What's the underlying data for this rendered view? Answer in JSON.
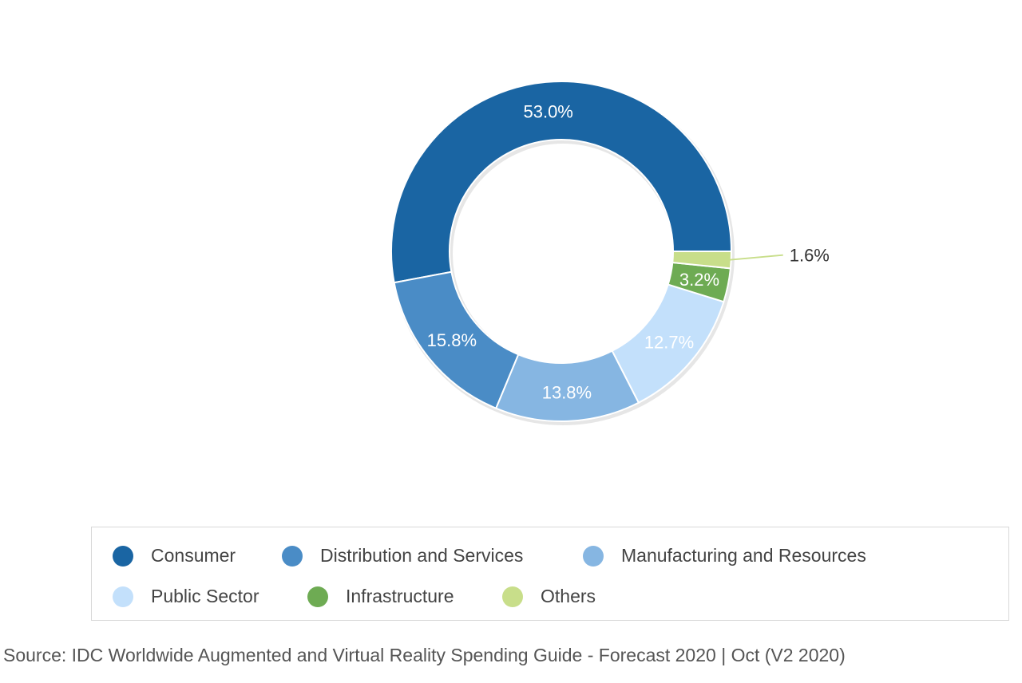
{
  "chart_data": {
    "type": "pie",
    "style": "donut",
    "categories": [
      "Consumer",
      "Distribution and Services",
      "Manufacturing and Resources",
      "Public Sector",
      "Infrastructure",
      "Others"
    ],
    "values": [
      53.0,
      15.8,
      13.8,
      12.7,
      3.2,
      1.6
    ],
    "labels": [
      "53.0%",
      "15.8%",
      "13.8%",
      "12.7%",
      "3.2%",
      "1.6%"
    ],
    "colors": [
      "#1a65a3",
      "#4a8cc6",
      "#86b6e2",
      "#c3e0fb",
      "#6eab53",
      "#c8de8a"
    ],
    "legend_position": "bottom",
    "title": ""
  },
  "legend": {
    "items": [
      {
        "label": "Consumer",
        "color": "#1a65a3"
      },
      {
        "label": "Distribution and Services",
        "color": "#4a8cc6"
      },
      {
        "label": "Manufacturing and Resources",
        "color": "#86b6e2"
      },
      {
        "label": "Public Sector",
        "color": "#c3e0fb"
      },
      {
        "label": "Infrastructure",
        "color": "#6eab53"
      },
      {
        "label": "Others",
        "color": "#c8de8a"
      }
    ]
  },
  "source": "Source: IDC Worldwide Augmented and Virtual Reality Spending Guide - Forecast 2020 | Oct (V2 2020)"
}
